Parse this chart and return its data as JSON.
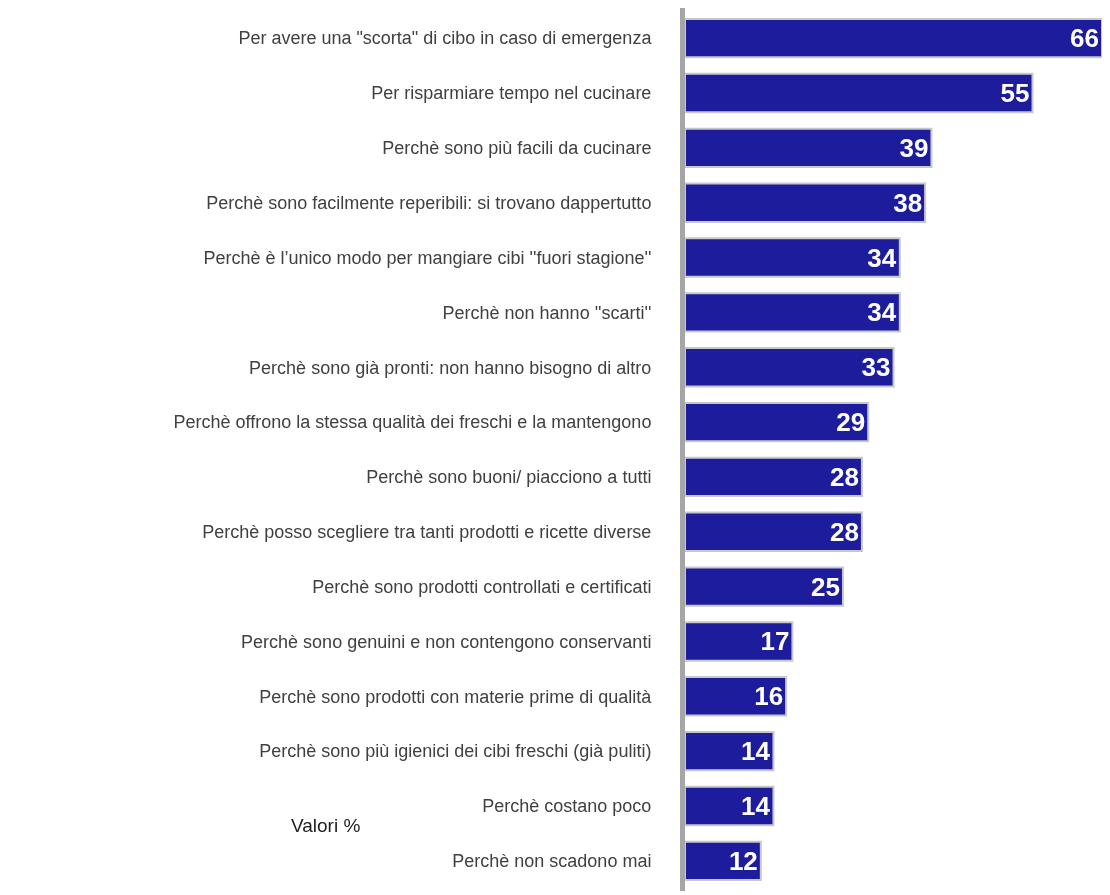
{
  "chart_data": {
    "type": "bar",
    "orientation": "horizontal",
    "data_labels": true,
    "color": "#1c1c9c",
    "categories": [
      "Per avere una \"scorta\" di cibo in caso di emergenza",
      "Per risparmiare tempo nel cucinare",
      "Perchè sono più facili da cucinare",
      "Perchè sono facilmente reperibili: si trovano dappertutto",
      "Perchè è l’unico modo per mangiare cibi ''fuori stagione''",
      "Perchè non hanno ''scarti''",
      "Perchè sono già pronti: non hanno bisogno di altro",
      "Perchè offrono la stessa qualità dei freschi e la mantengono",
      "Perchè sono buoni/ piacciono a tutti",
      "Perchè posso scegliere tra tanti prodotti e ricette diverse",
      "Perchè sono prodotti controllati e certificati",
      "Perchè sono genuini e non contengono conservanti",
      "Perchè sono prodotti con materie prime di qualità",
      "Perchè sono più igienici dei cibi freschi (già puliti)",
      "Perchè costano poco",
      "Perchè non scadono mai"
    ],
    "values": [
      66,
      55,
      39,
      38,
      34,
      34,
      33,
      29,
      28,
      28,
      25,
      17,
      16,
      14,
      14,
      12
    ],
    "annotations": [
      "Valori %"
    ]
  }
}
